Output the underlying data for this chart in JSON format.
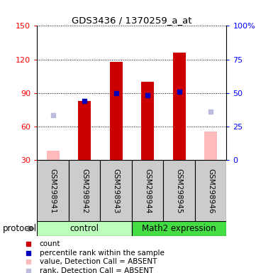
{
  "title": "GDS3436 / 1370259_a_at",
  "samples": [
    "GSM298941",
    "GSM298942",
    "GSM298943",
    "GSM298944",
    "GSM298945",
    "GSM298946"
  ],
  "ylim_left": [
    30,
    150
  ],
  "ylim_right": [
    0,
    100
  ],
  "yticks_left": [
    30,
    60,
    90,
    120,
    150
  ],
  "yticks_right": [
    0,
    25,
    50,
    75,
    100
  ],
  "ytick_labels_right": [
    "0",
    "25",
    "50",
    "75",
    "100%"
  ],
  "red_bars": {
    "GSM298942": 83,
    "GSM298943": 118,
    "GSM298944": 100,
    "GSM298945": 126
  },
  "blue_squares": {
    "GSM298942": 83,
    "GSM298943": 90,
    "GSM298944": 88,
    "GSM298945": 91
  },
  "pink_bars": {
    "GSM298941": 38,
    "GSM298946": 55
  },
  "lightblue_squares": {
    "GSM298941": 70,
    "GSM298946": 73
  },
  "bar_width": 0.4,
  "bar_base": 30,
  "red_color": "#cc0000",
  "blue_color": "#0000bb",
  "pink_color": "#ffbbbb",
  "lightblue_color": "#bbbbdd",
  "bg_color": "#cccccc",
  "ctrl_color": "#bbffbb",
  "math_color": "#44dd44",
  "legend_items": [
    {
      "label": "count",
      "color": "#cc0000"
    },
    {
      "label": "percentile rank within the sample",
      "color": "#0000bb"
    },
    {
      "label": "value, Detection Call = ABSENT",
      "color": "#ffbbbb"
    },
    {
      "label": "rank, Detection Call = ABSENT",
      "color": "#bbbbdd"
    }
  ]
}
